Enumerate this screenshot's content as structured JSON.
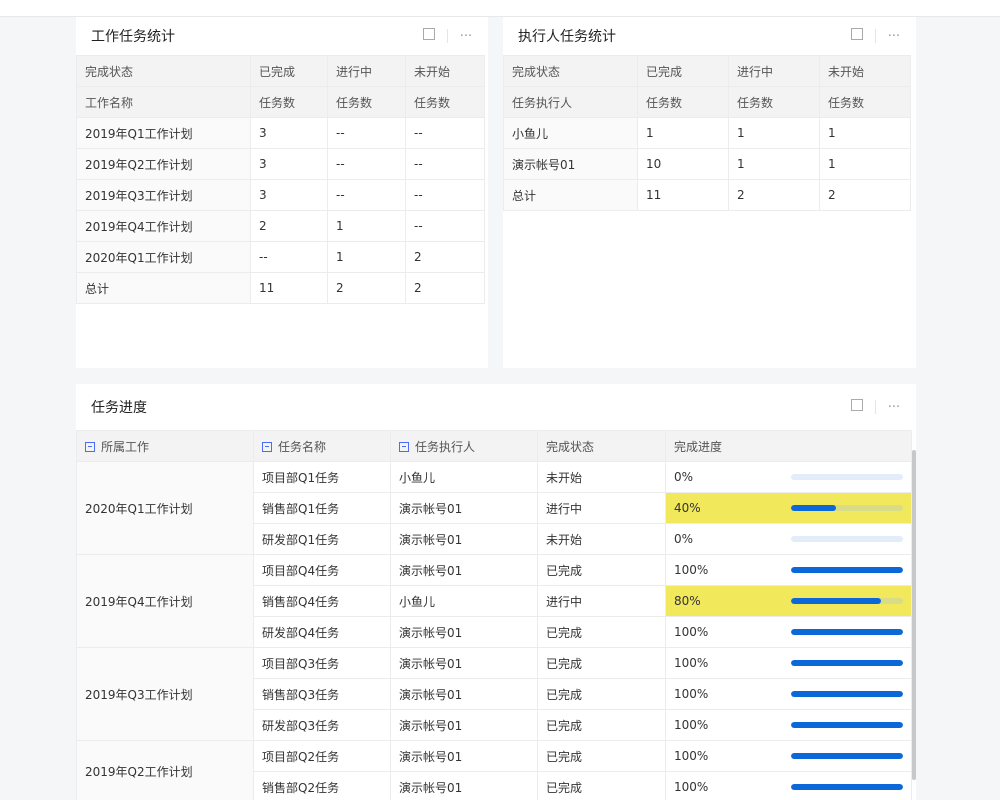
{
  "colors": {
    "accent": "#0c68d9",
    "highlight": "#f2e85c"
  },
  "card1": {
    "title": "工作任务统计",
    "header1": [
      "完成状态",
      "已完成",
      "进行中",
      "未开始"
    ],
    "header2": [
      "工作名称",
      "任务数",
      "任务数",
      "任务数"
    ],
    "rows": [
      [
        "2019年Q1工作计划",
        "3",
        "--",
        "--"
      ],
      [
        "2019年Q2工作计划",
        "3",
        "--",
        "--"
      ],
      [
        "2019年Q3工作计划",
        "3",
        "--",
        "--"
      ],
      [
        "2019年Q4工作计划",
        "2",
        "1",
        "--"
      ],
      [
        "2020年Q1工作计划",
        "--",
        "1",
        "2"
      ],
      [
        "总计",
        "11",
        "2",
        "2"
      ]
    ]
  },
  "card2": {
    "title": "执行人任务统计",
    "header1": [
      "完成状态",
      "已完成",
      "进行中",
      "未开始"
    ],
    "header2": [
      "任务执行人",
      "任务数",
      "任务数",
      "任务数"
    ],
    "rows": [
      [
        "小鱼儿",
        "1",
        "1",
        "1"
      ],
      [
        "演示帐号01",
        "10",
        "1",
        "1"
      ],
      [
        "总计",
        "11",
        "2",
        "2"
      ]
    ]
  },
  "card3": {
    "title": "任务进度",
    "headers": [
      "所属工作",
      "任务名称",
      "任务执行人",
      "完成状态",
      "完成进度"
    ],
    "groups": [
      {
        "work": "2020年Q1工作计划",
        "rows": [
          [
            "项目部Q1任务",
            "小鱼儿",
            "未开始",
            0
          ],
          [
            "销售部Q1任务",
            "演示帐号01",
            "进行中",
            40
          ],
          [
            "研发部Q1任务",
            "演示帐号01",
            "未开始",
            0
          ]
        ]
      },
      {
        "work": "2019年Q4工作计划",
        "rows": [
          [
            "项目部Q4任务",
            "演示帐号01",
            "已完成",
            100
          ],
          [
            "销售部Q4任务",
            "小鱼儿",
            "进行中",
            80
          ],
          [
            "研发部Q4任务",
            "演示帐号01",
            "已完成",
            100
          ]
        ]
      },
      {
        "work": "2019年Q3工作计划",
        "rows": [
          [
            "项目部Q3任务",
            "演示帐号01",
            "已完成",
            100
          ],
          [
            "销售部Q3任务",
            "演示帐号01",
            "已完成",
            100
          ],
          [
            "研发部Q3任务",
            "演示帐号01",
            "已完成",
            100
          ]
        ]
      },
      {
        "work": "2019年Q2工作计划",
        "rows": [
          [
            "项目部Q2任务",
            "演示帐号01",
            "已完成",
            100
          ],
          [
            "销售部Q2任务",
            "演示帐号01",
            "已完成",
            100
          ]
        ]
      }
    ]
  }
}
